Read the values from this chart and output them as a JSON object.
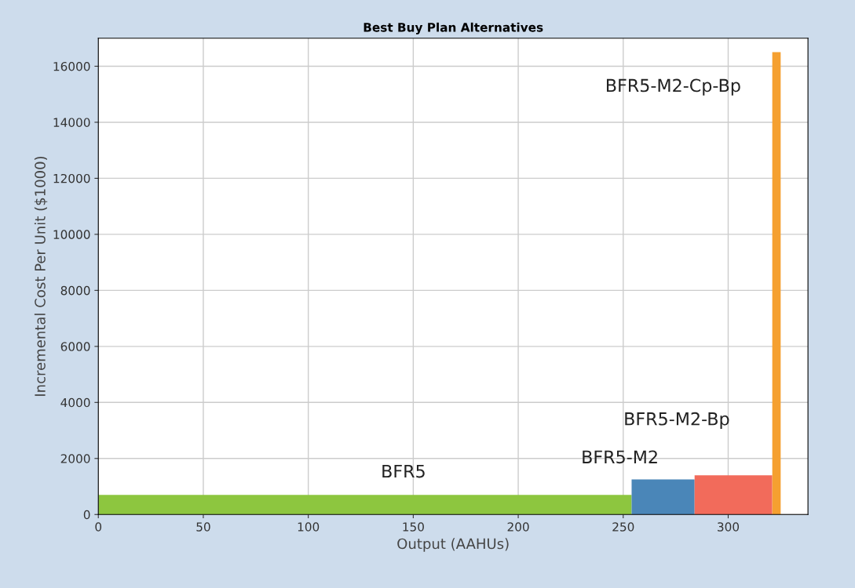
{
  "chart_data": {
    "type": "histogram",
    "title": "Best Buy Plan Alternatives",
    "xlabel": "Output (AAHUs)",
    "ylabel": "Incremental Cost Per Unit ($1000)",
    "bins": [
      0,
      254,
      284,
      321,
      325
    ],
    "values": [
      700,
      1250,
      1400,
      16500
    ],
    "colors": [
      "#8dc63f",
      "#4a86b8",
      "#f26b5b",
      "#f5a030"
    ],
    "xlim": [
      0,
      338
    ],
    "xticks": [
      0,
      50,
      100,
      150,
      200,
      250,
      300
    ],
    "ylim": [
      0,
      17000
    ],
    "yticks": [
      0,
      2000,
      4000,
      6000,
      8000,
      10000,
      12000,
      14000,
      16000
    ],
    "grid": true,
    "annotations": [
      "BFR5",
      "BFR5-M2",
      "BFR5-M2-Bp",
      "BFR5-M2-Cp-Bp"
    ]
  }
}
